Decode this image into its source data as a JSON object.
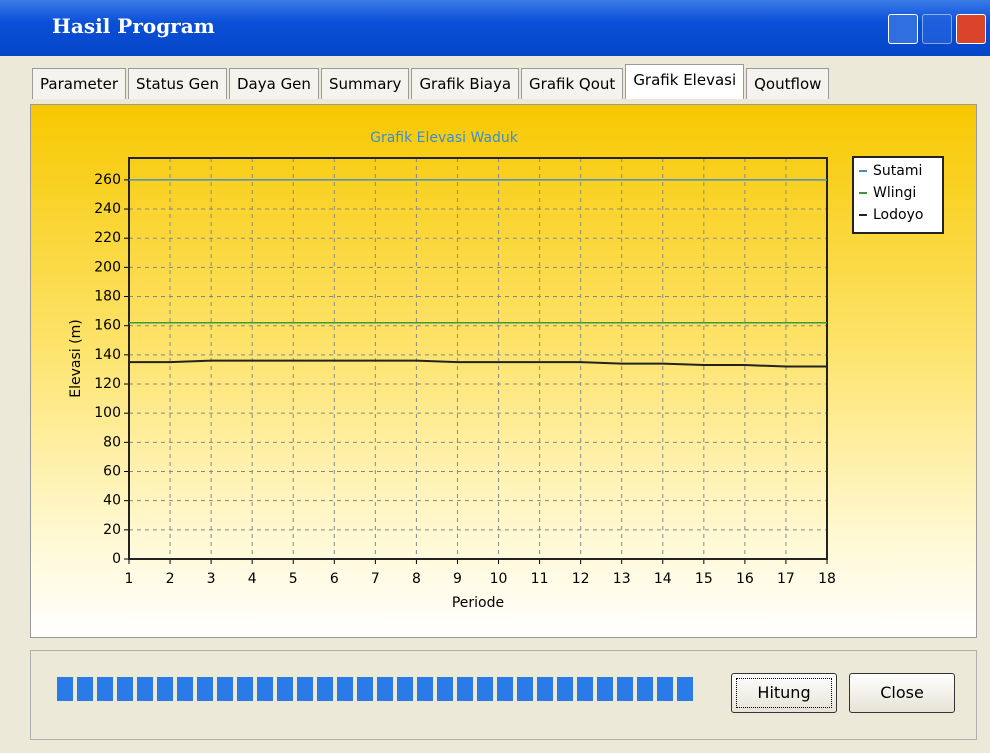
{
  "window": {
    "title": "Hasil Program"
  },
  "tabs": [
    "Parameter",
    "Status Gen",
    "Daya Gen",
    "Summary",
    "Grafik Biaya",
    "Grafik Qout",
    "Grafik Elevasi",
    "Qoutflow"
  ],
  "buttons": [
    "Hitung",
    "Close"
  ],
  "chart_data": {
    "type": "line",
    "title": "Grafik Elevasi Waduk",
    "x_label": "Periode",
    "y_label": "Elevasi (m)",
    "x": [
      1,
      2,
      3,
      4,
      5,
      6,
      7,
      8,
      9,
      10,
      11,
      12,
      13,
      14,
      15,
      16,
      17,
      18
    ],
    "xlim": [
      1,
      18
    ],
    "xticks": [
      1,
      2,
      3,
      4,
      5,
      6,
      7,
      8,
      9,
      10,
      11,
      12,
      13,
      14,
      15,
      16,
      17,
      18
    ],
    "ylim": [
      0,
      275
    ],
    "yticks": [
      0,
      20,
      40,
      60,
      80,
      100,
      120,
      140,
      160,
      180,
      200,
      220,
      240,
      260
    ],
    "grid": true,
    "legend": "right",
    "series": [
      {
        "name": "Sutami",
        "color": "#4a8fc0",
        "values": [
          260,
          260,
          260,
          260,
          260,
          260,
          260,
          260,
          260,
          260,
          260,
          260,
          260,
          260,
          260,
          260,
          260,
          260
        ]
      },
      {
        "name": "Wlingi",
        "color": "#3a9a3a",
        "values": [
          162,
          162,
          162,
          162,
          162,
          162,
          162,
          162,
          162,
          162,
          162,
          162,
          162,
          162,
          162,
          162,
          162,
          162
        ]
      },
      {
        "name": "Lodoyo",
        "color": "#222222",
        "values": [
          135,
          135,
          136,
          136,
          136,
          136,
          136,
          136,
          135,
          135,
          135,
          135,
          134,
          134,
          133,
          133,
          132,
          132
        ]
      }
    ]
  }
}
